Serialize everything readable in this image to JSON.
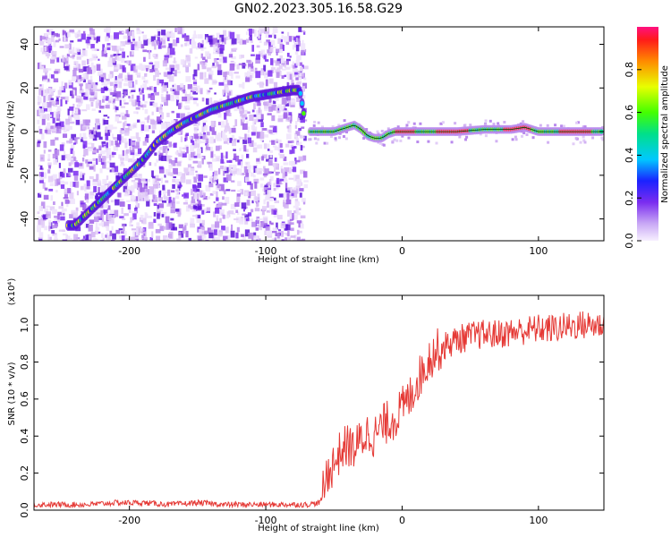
{
  "title": "GN02.2023.305.16.58.G29",
  "chart_data": [
    {
      "type": "heatmap",
      "xlabel": "Height of straight line (km)",
      "ylabel": "Frequency (Hz)",
      "xlim": [
        -270,
        148
      ],
      "ylim": [
        -50,
        48
      ],
      "xticks": [
        -200,
        -100,
        0,
        100
      ],
      "yticks": [
        -40,
        -20,
        0,
        20,
        40
      ],
      "ridge": {
        "x": [
          -240,
          -230,
          -220,
          -210,
          -200,
          -190,
          -180,
          -170,
          -160,
          -150,
          -140,
          -130,
          -120,
          -110,
          -100,
          -90,
          -80,
          -75,
          -70,
          -60,
          -50,
          -40,
          -35,
          -30,
          -25,
          -20,
          -15,
          -10,
          -5,
          0,
          20,
          40,
          60,
          70,
          80,
          90,
          100,
          110,
          120,
          130,
          140,
          148
        ],
        "y": [
          -43,
          -37,
          -31,
          -25,
          -19,
          -13,
          -5,
          0,
          4,
          7,
          10,
          12,
          14,
          16,
          17,
          18,
          19,
          19,
          0,
          0,
          0,
          2,
          3,
          1,
          -2,
          -3,
          -3,
          -1,
          0,
          0,
          0,
          0,
          1,
          1,
          1,
          2,
          0,
          0,
          0,
          0,
          0,
          0
        ]
      },
      "colorbar": {
        "label": "Normalized spectral amplitude",
        "range": [
          0,
          1
        ],
        "ticks": [
          0.0,
          0.2,
          0.4,
          0.6,
          0.8
        ]
      }
    },
    {
      "type": "line",
      "xlabel": "Height of straight line (km)",
      "ylabel": "SNR (10 * v/v)",
      "yexponent_label": "(x10⁴)",
      "xlim": [
        -270,
        148
      ],
      "ylim": [
        0,
        1.16
      ],
      "xticks": [
        -200,
        -100,
        0,
        100
      ],
      "yticks": [
        0.0,
        0.2,
        0.4,
        0.6,
        0.8,
        1.0
      ],
      "color": "#e53935",
      "series": [
        {
          "x": [
            -270,
            -250,
            -230,
            -210,
            -190,
            -170,
            -150,
            -130,
            -110,
            -90,
            -70,
            -60,
            -57,
            -55,
            -50,
            -45,
            -40,
            -35,
            -30,
            -25,
            -20,
            -15,
            -10,
            -5,
            0,
            5,
            10,
            15,
            20,
            25,
            30,
            35,
            40,
            45,
            50,
            60,
            70,
            80,
            90,
            100,
            110,
            120,
            130,
            140,
            148
          ],
          "values": [
            0.03,
            0.03,
            0.03,
            0.04,
            0.04,
            0.03,
            0.04,
            0.03,
            0.03,
            0.03,
            0.03,
            0.04,
            0.12,
            0.2,
            0.25,
            0.32,
            0.35,
            0.33,
            0.38,
            0.42,
            0.4,
            0.45,
            0.48,
            0.5,
            0.55,
            0.6,
            0.68,
            0.75,
            0.82,
            0.86,
            0.88,
            0.9,
            0.92,
            0.93,
            0.94,
            0.95,
            0.95,
            0.96,
            0.97,
            0.98,
            0.98,
            0.99,
            1.0,
            1.0,
            1.0
          ]
        }
      ]
    }
  ]
}
